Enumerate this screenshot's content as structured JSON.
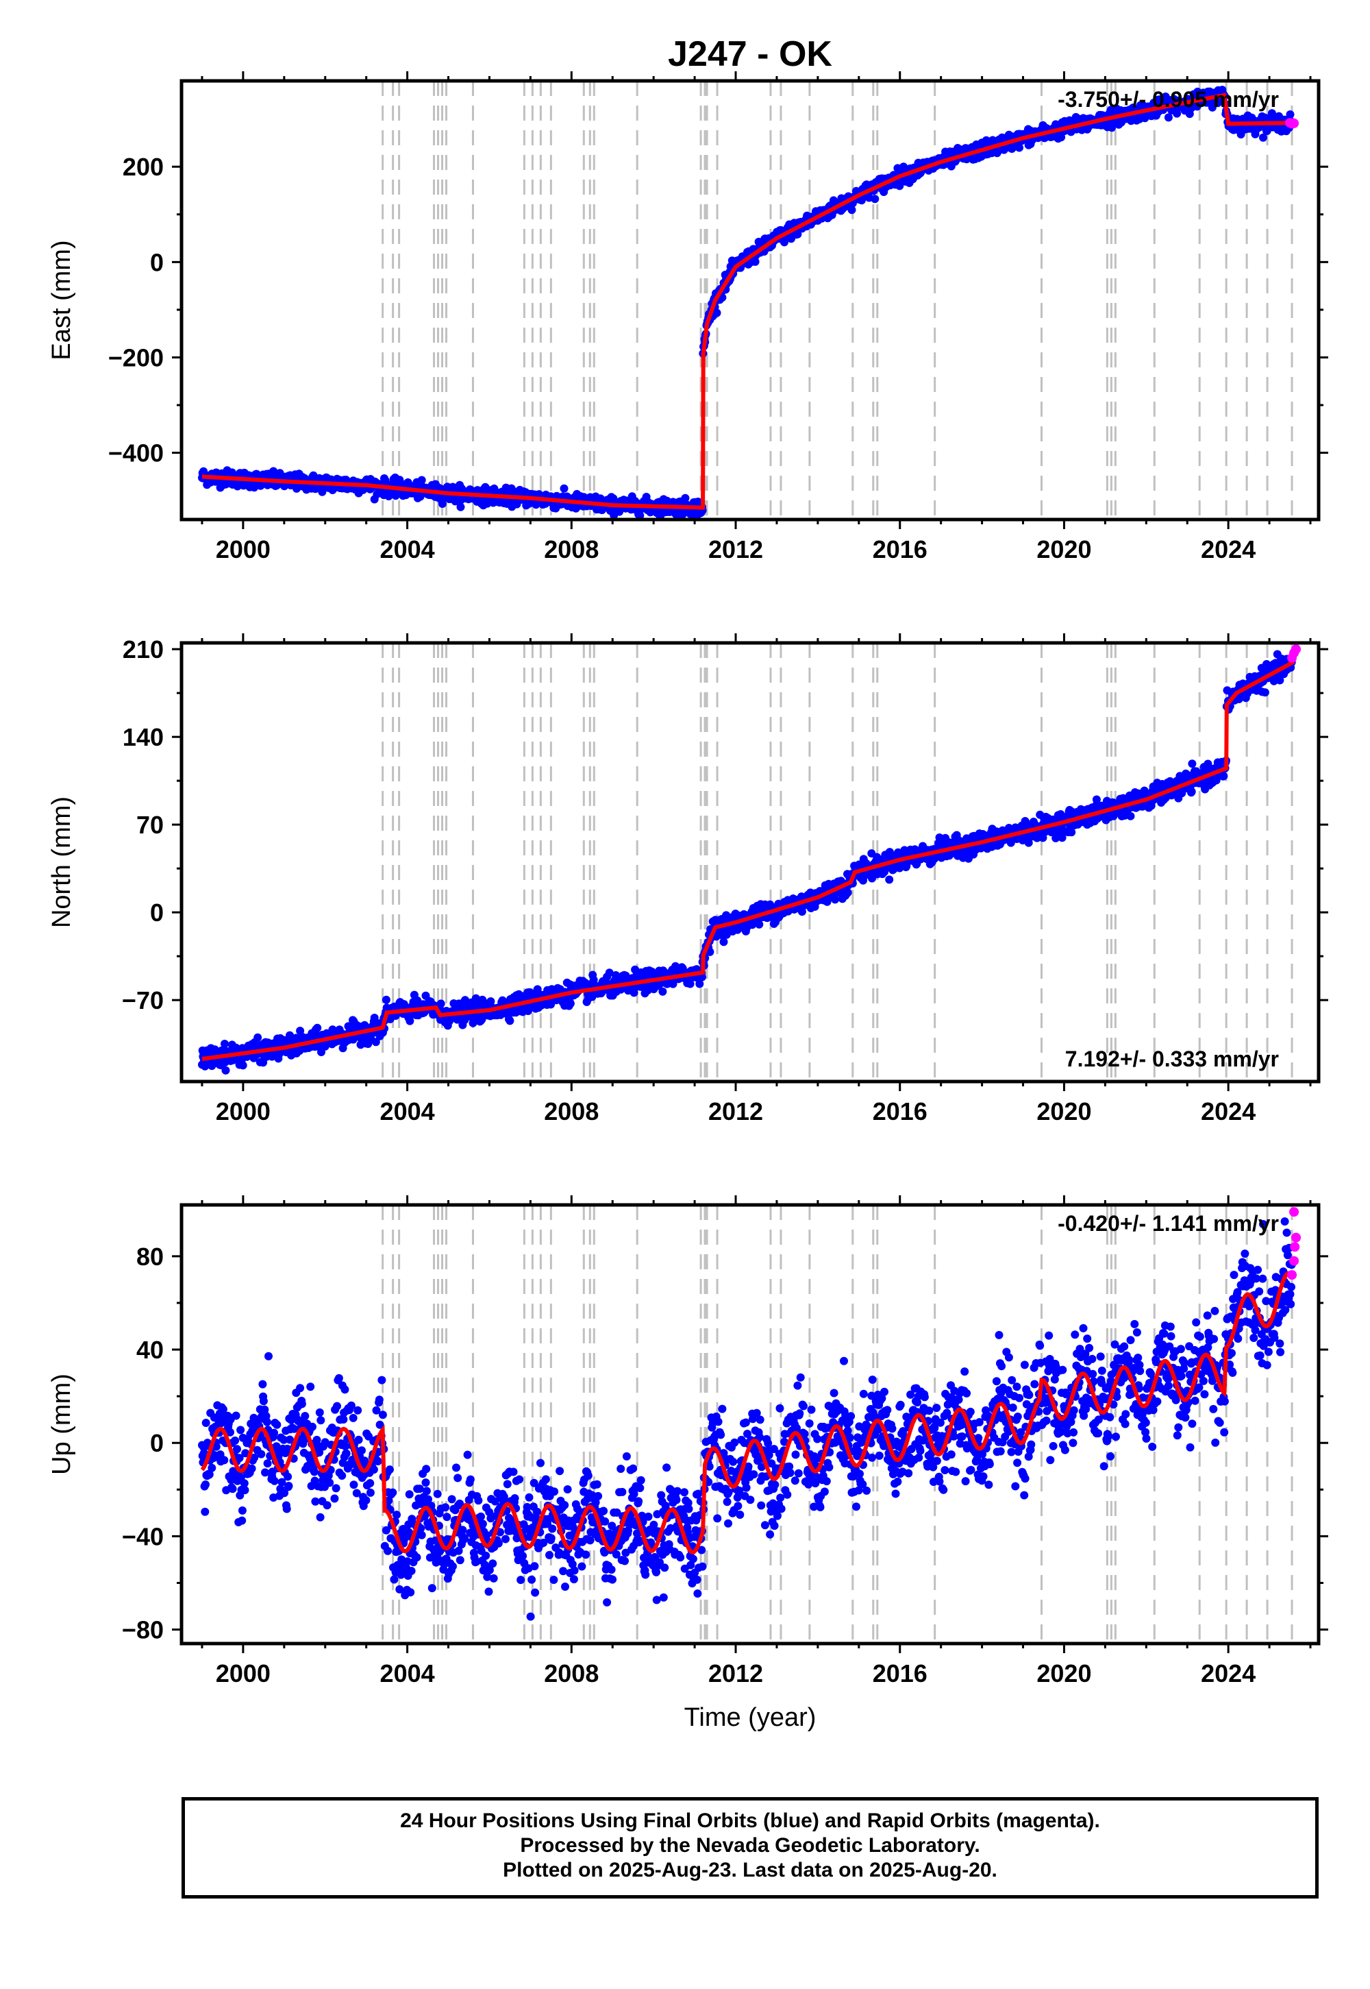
{
  "title": "J247 - OK",
  "colors": {
    "final_orbits": "#0000ff",
    "rapid_orbits": "#ff00ff",
    "model": "#ff0000",
    "event_lines": "#c0c0c0"
  },
  "xaxis_label": "Time (year)",
  "footer": {
    "line1": "24 Hour Positions Using Final Orbits (blue) and Rapid Orbits (magenta).",
    "line2": "Processed by the Nevada Geodetic Laboratory.",
    "line3": "Plotted on 2025-Aug-23. Last data on 2025-Aug-20."
  },
  "event_lines": [
    2003.4,
    2003.65,
    2003.8,
    2004.65,
    2004.75,
    2004.85,
    2004.95,
    2005.6,
    2006.85,
    2007.05,
    2007.25,
    2007.5,
    2008.3,
    2008.45,
    2008.55,
    2009.6,
    2011.15,
    2011.25,
    2011.3,
    2011.55,
    2012.85,
    2013.1,
    2013.8,
    2014.85,
    2015.35,
    2015.45,
    2016.85,
    2019.45,
    2021.05,
    2021.15,
    2021.25,
    2022.2,
    2023.3,
    2023.95,
    2024.45,
    2024.95,
    2025.55
  ],
  "chart_data": [
    {
      "type": "scatter",
      "ylabel": "East (mm)",
      "rate_label": "-3.750+/- 0.905 mm/yr",
      "xlim": [
        1998.5,
        2026.2
      ],
      "ylim": [
        -540,
        380
      ],
      "xticks": [
        2000,
        2004,
        2008,
        2012,
        2016,
        2020,
        2024
      ],
      "yticks": [
        -400,
        -200,
        0,
        200
      ],
      "model_series": {
        "name": "",
        "x": [
          1999.0,
          2001.0,
          2003.0,
          2005.0,
          2007.0,
          2009.0,
          2011.2,
          2011.2,
          2011.3,
          2011.5,
          2012.0,
          2013.0,
          2014.0,
          2015.0,
          2016.0,
          2017.0,
          2018.0,
          2019.0,
          2020.0,
          2021.0,
          2022.0,
          2023.0,
          2023.9,
          2024.0,
          2025.6
        ],
        "y": [
          -450,
          -460,
          -468,
          -485,
          -495,
          -510,
          -515,
          -200,
          -130,
          -80,
          -10,
          50,
          95,
          140,
          180,
          210,
          235,
          260,
          280,
          300,
          318,
          335,
          350,
          290,
          292
        ]
      },
      "scatter_noise": 8,
      "rapid_points": {
        "x": [
          2025.5,
          2025.55,
          2025.6
        ],
        "y": [
          292,
          290,
          291
        ]
      }
    },
    {
      "type": "scatter",
      "ylabel": "North (mm)",
      "rate_label": "7.192+/- 0.333 mm/yr",
      "xlim": [
        1998.5,
        2026.2
      ],
      "ylim": [
        -135,
        215
      ],
      "xticks": [
        2000,
        2004,
        2008,
        2012,
        2016,
        2020,
        2024
      ],
      "yticks": [
        -70,
        0,
        70,
        140,
        210
      ],
      "model_series": {
        "name": "",
        "x": [
          1999.0,
          2001.0,
          2003.4,
          2003.5,
          2004.7,
          2004.8,
          2006.0,
          2008.0,
          2011.2,
          2011.2,
          2011.5,
          2012.0,
          2013.0,
          2014.0,
          2014.8,
          2014.9,
          2016.0,
          2018.0,
          2020.0,
          2022.0,
          2023.95,
          2023.95,
          2024.2,
          2025.6
        ],
        "y": [
          -117,
          -108,
          -92,
          -80,
          -76,
          -82,
          -78,
          -64,
          -48,
          -35,
          -12,
          -8,
          2,
          12,
          24,
          32,
          42,
          56,
          72,
          90,
          115,
          165,
          175,
          200
        ]
      },
      "scatter_noise": 4,
      "rapid_points": {
        "x": [
          2025.55,
          2025.6,
          2025.65
        ],
        "y": [
          203,
          207,
          210
        ]
      }
    },
    {
      "type": "scatter",
      "ylabel": "Up (mm)",
      "rate_label": "-0.420+/- 1.141 mm/yr",
      "xlim": [
        1998.5,
        2026.2
      ],
      "ylim": [
        -86,
        102
      ],
      "xticks": [
        2000,
        2004,
        2008,
        2012,
        2016,
        2020,
        2024
      ],
      "yticks": [
        -80,
        -40,
        0,
        40,
        80
      ],
      "model_trend": {
        "x": [
          1999.0,
          2003.4,
          2003.45,
          2006.0,
          2011.2,
          2011.25,
          2014.0,
          2019.4,
          2019.45,
          2023.9,
          2023.95,
          2025.6
        ],
        "y": [
          -3,
          -3,
          -38,
          -35,
          -38,
          -12,
          -3,
          10,
          18,
          30,
          50,
          65
        ]
      },
      "seasonal_amplitude": 9,
      "scatter_noise": 10,
      "rapid_points": {
        "x": [
          2025.55,
          2025.6,
          2025.62,
          2025.65,
          2025.6
        ],
        "y": [
          72,
          78,
          84,
          88,
          99
        ]
      }
    }
  ]
}
